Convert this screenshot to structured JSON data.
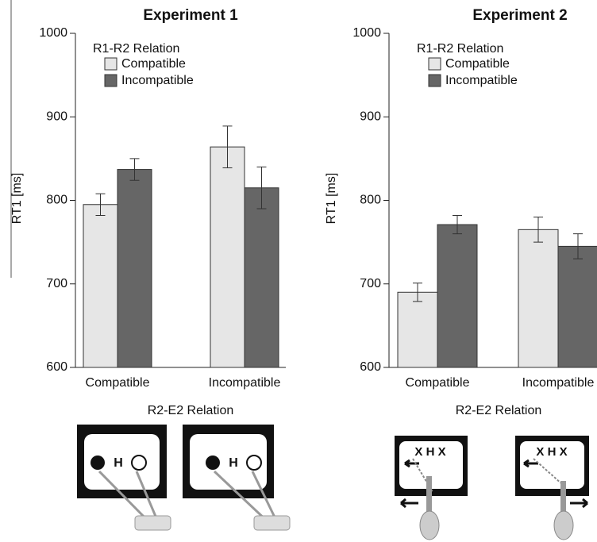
{
  "chart_data": [
    {
      "type": "bar",
      "title": "Experiment 1",
      "y_label": "RT1 [ms]",
      "x_label": "R2-E2 Relation",
      "legend_title": "R1-R2 Relation",
      "legend": "top-left",
      "categories": [
        "Compatible",
        "Incompatible"
      ],
      "series": [
        {
          "name": "Compatible",
          "color": "#e6e6e6",
          "values": [
            795,
            864
          ],
          "errors": [
            13,
            25
          ]
        },
        {
          "name": "Incompatible",
          "color": "#666666",
          "values": [
            837,
            815
          ],
          "errors": [
            13,
            25
          ]
        }
      ],
      "ylim": [
        600,
        1000
      ],
      "yticks": [
        600,
        700,
        800,
        900,
        1000
      ],
      "grid": false,
      "stimuli": [
        "H",
        "H"
      ]
    },
    {
      "type": "bar",
      "title": "Experiment 2",
      "y_label": "RT1 [ms]",
      "x_label": "R2-E2 Relation",
      "legend_title": "R1-R2 Relation",
      "legend": "top-left",
      "categories": [
        "Compatible",
        "Incompatible"
      ],
      "series": [
        {
          "name": "Compatible",
          "color": "#e6e6e6",
          "values": [
            690,
            765
          ],
          "errors": [
            11,
            15
          ]
        },
        {
          "name": "Incompatible",
          "color": "#666666",
          "values": [
            771,
            745
          ],
          "errors": [
            11,
            15
          ]
        }
      ],
      "ylim": [
        600,
        1000
      ],
      "yticks": [
        600,
        700,
        800,
        900,
        1000
      ],
      "grid": false,
      "stimuli": [
        "X H X",
        "X H X"
      ]
    }
  ]
}
